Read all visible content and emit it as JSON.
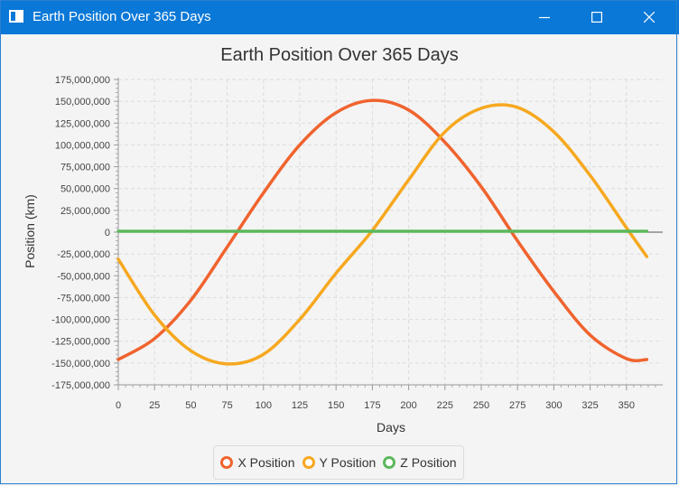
{
  "window": {
    "title": "Earth Position Over 365 Days",
    "controls": {
      "minimize": "minimize-icon",
      "maximize": "maximize-icon",
      "close": "close-icon"
    }
  },
  "colors": {
    "titlebar": "#0a78d7",
    "x_series": "#f0632e",
    "y_series": "#f6a81f",
    "z_series": "#5cb85c"
  },
  "chart_data": {
    "type": "line",
    "title": "Earth Position Over 365 Days",
    "xlabel": "Days",
    "ylabel": "Position (km)",
    "xlim": [
      0,
      375
    ],
    "ylim": [
      -175000000,
      175000000
    ],
    "x_ticks": [
      0,
      25,
      50,
      75,
      100,
      125,
      150,
      175,
      200,
      225,
      250,
      275,
      300,
      325,
      350
    ],
    "y_ticks": [
      175000000,
      150000000,
      125000000,
      100000000,
      75000000,
      50000000,
      25000000,
      0,
      -25000000,
      -50000000,
      -75000000,
      -100000000,
      -125000000,
      -150000000,
      -175000000
    ],
    "y_tick_labels": [
      "175,000,000",
      "150,000,000",
      "125,000,000",
      "100,000,000",
      "75,000,000",
      "50,000,000",
      "25,000,000",
      "0",
      "-25,000,000",
      "-50,000,000",
      "-75,000,000",
      "-100,000,000",
      "-125,000,000",
      "-150,000,000",
      "-175,000,000"
    ],
    "grid": true,
    "legend": "bottom",
    "series": [
      {
        "name": "X Position",
        "x": [
          0,
          25,
          50,
          75,
          100,
          125,
          150,
          175,
          200,
          225,
          250,
          275,
          300,
          325,
          350,
          364
        ],
        "values": [
          -146000000,
          -122000000,
          -78000000,
          -17000000,
          45000000,
          100000000,
          137000000,
          151000000,
          140000000,
          103000000,
          52000000,
          -10000000,
          -68000000,
          -118000000,
          -145000000,
          -146000000
        ]
      },
      {
        "name": "Y Position",
        "x": [
          0,
          25,
          50,
          75,
          100,
          125,
          150,
          175,
          200,
          225,
          250,
          275,
          300,
          325,
          350,
          364
        ],
        "values": [
          -31000000,
          -95000000,
          -136000000,
          -151000000,
          -140000000,
          -100000000,
          -47000000,
          2000000,
          60000000,
          115000000,
          142000000,
          143000000,
          115000000,
          65000000,
          5000000,
          -28000000
        ]
      },
      {
        "name": "Z Position",
        "x": [
          0,
          364
        ],
        "values": [
          1000000,
          1000000
        ]
      }
    ]
  }
}
